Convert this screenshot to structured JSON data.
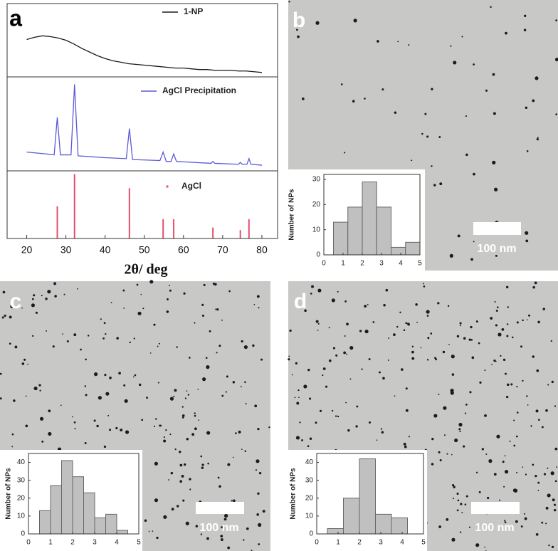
{
  "chart_data": [
    {
      "type": "line",
      "panel_label": "a",
      "x": [
        20,
        22,
        24,
        26,
        28,
        30,
        32,
        34,
        36,
        38,
        40,
        42,
        44,
        46,
        48,
        50,
        52,
        54,
        56,
        58,
        60,
        62,
        64,
        66,
        68,
        70,
        72,
        74,
        76,
        78,
        80
      ],
      "series": [
        {
          "name": "1-NP",
          "color": "#1a1a1a",
          "values": [
            51,
            54,
            56,
            55,
            53,
            50,
            45,
            39,
            34,
            29,
            25,
            22,
            20,
            18,
            17,
            16,
            15,
            14,
            13,
            12,
            12,
            11,
            10,
            10,
            9,
            9,
            9,
            8,
            8,
            7,
            6
          ]
        }
      ],
      "xlim": [
        15,
        84
      ],
      "ylim": [
        0,
        100
      ]
    },
    {
      "type": "line",
      "x": [
        20,
        25,
        27,
        27.8,
        28.6,
        31.3,
        32.2,
        33.1,
        40,
        45.4,
        46.2,
        47,
        54,
        54.8,
        55.6,
        56.8,
        57.5,
        58.2,
        67,
        67.5,
        68,
        74,
        74.5,
        75,
        76.2,
        76.7,
        77.2,
        80
      ],
      "series": [
        {
          "name": "AgCl Precipitation",
          "color": "#5a5ad6",
          "values": [
            20,
            18,
            17,
            57,
            17,
            17,
            92,
            16,
            14,
            13,
            45,
            12,
            11,
            20,
            10,
            10,
            18,
            10,
            8,
            10,
            8,
            7,
            9,
            7,
            7,
            13,
            7,
            6
          ]
        }
      ],
      "xlim": [
        15,
        84
      ],
      "ylim": [
        0,
        100
      ]
    },
    {
      "type": "stem",
      "x": [
        27.8,
        32.2,
        46.2,
        54.8,
        57.5,
        67.5,
        74.5,
        76.7
      ],
      "series": [
        {
          "name": "AgCl",
          "color": "#e4506e",
          "values": [
            50,
            100,
            78,
            30,
            30,
            17,
            13,
            30
          ]
        }
      ],
      "xlim": [
        15,
        84
      ],
      "ylim": [
        0,
        105
      ],
      "xticks": [
        20,
        30,
        40,
        50,
        60,
        70,
        80
      ],
      "xlabel": "2θ/ deg"
    },
    {
      "type": "histogram",
      "panel_label": "b",
      "scale_bar": "100 nm",
      "ylabel": "Number of NPs",
      "color": "#c0c0c0",
      "bins": [
        0.5,
        1.25,
        2,
        2.75,
        3.5,
        4.25,
        5
      ],
      "values": [
        13,
        19,
        29,
        19,
        3,
        5
      ],
      "xlim": [
        0,
        5
      ],
      "xticks": [
        0,
        1,
        2,
        3,
        4,
        5
      ],
      "ylim": [
        0,
        32
      ],
      "yticks": [
        0,
        10,
        20,
        30
      ]
    },
    {
      "type": "histogram",
      "panel_label": "c",
      "scale_bar": "100 nm",
      "ylabel": "Number of NPs",
      "color": "#c0c0c0",
      "bins": [
        0.5,
        1,
        1.5,
        2,
        2.5,
        3,
        3.5,
        4,
        4.5
      ],
      "values": [
        13,
        27,
        41,
        32,
        23,
        9,
        11,
        2
      ],
      "xlim": [
        0,
        5
      ],
      "xticks": [
        0,
        1,
        2,
        3,
        4,
        5
      ],
      "ylim": [
        0,
        45
      ],
      "yticks": [
        0,
        10,
        20,
        30,
        40
      ]
    },
    {
      "type": "histogram",
      "panel_label": "d",
      "scale_bar": "100 nm",
      "ylabel": "Number of NPs",
      "color": "#c0c0c0",
      "bins": [
        0.5,
        1.25,
        2,
        2.75,
        3.5,
        4.25
      ],
      "values": [
        3,
        20,
        42,
        11,
        9
      ],
      "xlim": [
        0,
        5
      ],
      "xticks": [
        0,
        1,
        2,
        3,
        4,
        5
      ],
      "ylim": [
        0,
        45
      ],
      "yticks": [
        0,
        10,
        20,
        30,
        40
      ]
    }
  ]
}
